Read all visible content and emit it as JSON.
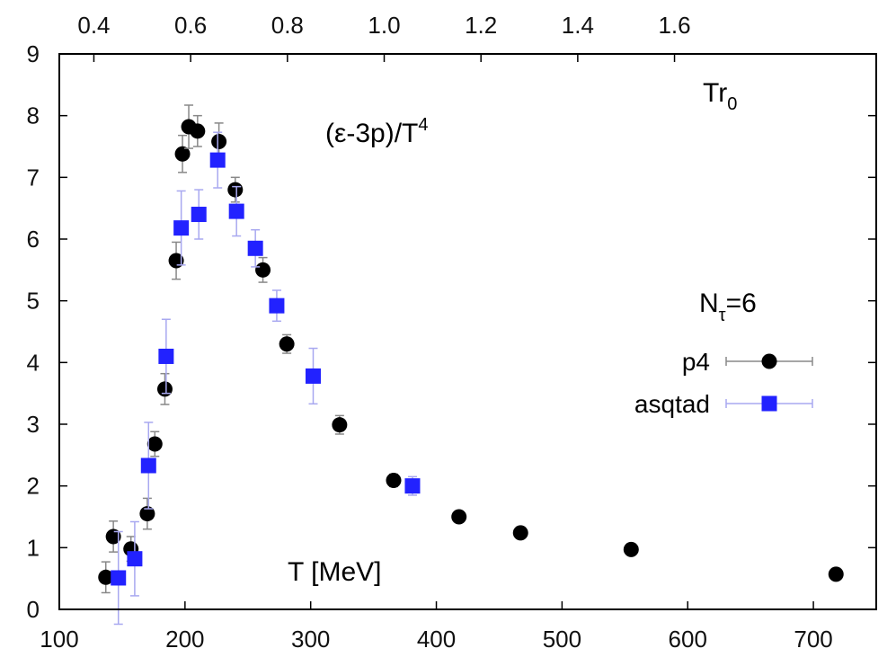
{
  "chart_data": {
    "type": "scatter",
    "xlabel": "T [MeV]",
    "top_axis_label": "Tr",
    "top_axis_label_sub": "0",
    "annotation_text": "(ε-3p)/T",
    "annotation_sup": "4",
    "legend_title": "N",
    "legend_title_sub": "τ",
    "legend_title_suffix": "=6",
    "xlim": [
      100,
      750
    ],
    "ylim": [
      0,
      9
    ],
    "x_ticks": [
      100,
      200,
      300,
      400,
      500,
      600,
      700
    ],
    "y_ticks": [
      0,
      1,
      2,
      3,
      4,
      5,
      6,
      7,
      8,
      9
    ],
    "top_ticks": [
      "0.4",
      "0.6",
      "0.8",
      "1.0",
      "1.2",
      "1.4",
      "1.6"
    ],
    "top_tick_T": [
      127.5,
      204.5,
      281.5,
      358.5,
      435.5,
      512.5,
      589.5
    ],
    "legend_position": "right",
    "series": [
      {
        "name": "p4",
        "marker": "circle",
        "color": "#000000",
        "error_color": "#888888",
        "points": [
          {
            "x": 137,
            "y": 0.52,
            "err": 0.25
          },
          {
            "x": 143,
            "y": 1.18,
            "err": 0.25
          },
          {
            "x": 157,
            "y": 0.98,
            "err": 0.2
          },
          {
            "x": 170,
            "y": 1.55,
            "err": 0.25
          },
          {
            "x": 176,
            "y": 2.68,
            "err": 0.2
          },
          {
            "x": 184,
            "y": 3.57,
            "err": 0.25
          },
          {
            "x": 193,
            "y": 5.65,
            "err": 0.3
          },
          {
            "x": 198,
            "y": 7.38,
            "err": 0.3
          },
          {
            "x": 203,
            "y": 7.82,
            "err": 0.35
          },
          {
            "x": 210,
            "y": 7.75,
            "err": 0.25
          },
          {
            "x": 227,
            "y": 7.58,
            "err": 0.3
          },
          {
            "x": 240,
            "y": 6.8,
            "err": 0.2
          },
          {
            "x": 262,
            "y": 5.5,
            "err": 0.2
          },
          {
            "x": 281,
            "y": 4.3,
            "err": 0.15
          },
          {
            "x": 323,
            "y": 2.99,
            "err": 0.15
          },
          {
            "x": 366,
            "y": 2.09,
            "err": 0.1
          },
          {
            "x": 418,
            "y": 1.5,
            "err": 0.05
          },
          {
            "x": 467,
            "y": 1.24,
            "err": 0.05
          },
          {
            "x": 555,
            "y": 0.97,
            "err": 0.05
          },
          {
            "x": 718,
            "y": 0.57,
            "err": 0.05
          }
        ]
      },
      {
        "name": "asqtad",
        "marker": "square",
        "color": "#2222ff",
        "error_color": "#a8a8f0",
        "points": [
          {
            "x": 147,
            "y": 0.51,
            "err": 0.75
          },
          {
            "x": 160,
            "y": 0.82,
            "err": 0.6
          },
          {
            "x": 171,
            "y": 2.33,
            "err": 0.7
          },
          {
            "x": 185,
            "y": 4.1,
            "err": 0.6
          },
          {
            "x": 197,
            "y": 6.18,
            "err": 0.6
          },
          {
            "x": 211,
            "y": 6.4,
            "err": 0.4
          },
          {
            "x": 226,
            "y": 7.28,
            "err": 0.45
          },
          {
            "x": 241,
            "y": 6.45,
            "err": 0.4
          },
          {
            "x": 256,
            "y": 5.85,
            "err": 0.3
          },
          {
            "x": 273,
            "y": 4.92,
            "err": 0.25
          },
          {
            "x": 302,
            "y": 3.78,
            "err": 0.45
          },
          {
            "x": 381,
            "y": 2.0,
            "err": 0.15
          }
        ]
      }
    ]
  }
}
